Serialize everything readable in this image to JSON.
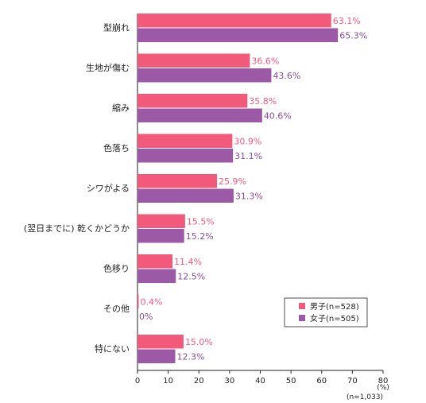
{
  "chart_data": {
    "type": "bar",
    "orientation": "horizontal",
    "categories": [
      "型崩れ",
      "生地が傷む",
      "縮み",
      "色落ち",
      "シワがよる",
      "(翌日までに) 乾くかどうか",
      "色移り",
      "その他",
      "特にない"
    ],
    "series": [
      {
        "name": "男子(n=528)",
        "color": "#f25a7c",
        "label_color": "#f25a7c",
        "values": [
          63.1,
          36.6,
          35.8,
          30.9,
          25.9,
          15.5,
          11.4,
          0.4,
          15.0
        ]
      },
      {
        "name": "女子(n=505)",
        "color": "#9b59a6",
        "label_color": "#8a4a98",
        "values": [
          65.3,
          43.6,
          40.6,
          31.1,
          31.3,
          15.2,
          12.5,
          0,
          12.3
        ]
      }
    ],
    "value_labels": [
      [
        "63.1%",
        "36.6%",
        "35.8%",
        "30.9%",
        "25.9%",
        "15.5%",
        "11.4%",
        "0.4%",
        "15.0%"
      ],
      [
        "65.3%",
        "43.6%",
        "40.6%",
        "31.1%",
        "31.3%",
        "15.2%",
        "12.5%",
        "0%",
        "12.3%"
      ]
    ],
    "xlim": [
      0,
      80
    ],
    "xticks": [
      "0",
      "10",
      "20",
      "30",
      "40",
      "50",
      "60",
      "70",
      "80"
    ],
    "unit_label": "(%)",
    "sample_label": "(n=1,033)",
    "legend_position": "bottom-right",
    "grid": false
  }
}
